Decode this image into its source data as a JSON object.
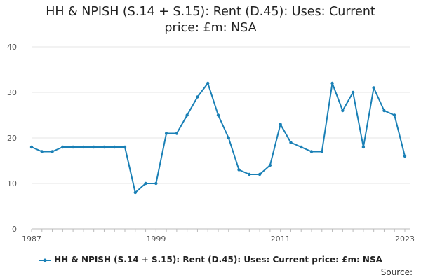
{
  "title_line1": "HH & NPISH (S.14 + S.15): Rent (D.45): Uses: Current",
  "title_line2": "price: £m: NSA",
  "source_label": "Source:",
  "colors": {
    "series": "#1a80b6",
    "grid": "#e6e6e6",
    "axis": "#bbbbbb",
    "tick_text": "#555555"
  },
  "chart_data": {
    "type": "line",
    "title": "HH & NPISH (S.14 + S.15): Rent (D.45): Uses: Current price: £m: NSA",
    "xlabel": "",
    "ylabel": "",
    "xlim": [
      1987,
      2023
    ],
    "ylim": [
      0,
      40
    ],
    "yticks": [
      0,
      10,
      20,
      30,
      40
    ],
    "xticks": [
      1987,
      1999,
      2011,
      2023
    ],
    "grid": true,
    "legend": "bottom",
    "x": [
      1987,
      1988,
      1989,
      1990,
      1991,
      1992,
      1993,
      1994,
      1995,
      1996,
      1997,
      1998,
      1999,
      2000,
      2001,
      2002,
      2003,
      2004,
      2005,
      2006,
      2007,
      2008,
      2009,
      2010,
      2011,
      2012,
      2013,
      2014,
      2015,
      2016,
      2017,
      2018,
      2019,
      2020,
      2021,
      2022,
      2023
    ],
    "series": [
      {
        "name": "HH & NPISH (S.14 + S.15): Rent (D.45): Uses: Current price: £m: NSA",
        "values": [
          18,
          17,
          17,
          18,
          18,
          18,
          18,
          18,
          18,
          18,
          8,
          10,
          10,
          21,
          21,
          25,
          29,
          32,
          25,
          20,
          13,
          12,
          12,
          14,
          23,
          19,
          18,
          17,
          17,
          32,
          26,
          30,
          18,
          31,
          26,
          25,
          16
        ]
      }
    ]
  }
}
